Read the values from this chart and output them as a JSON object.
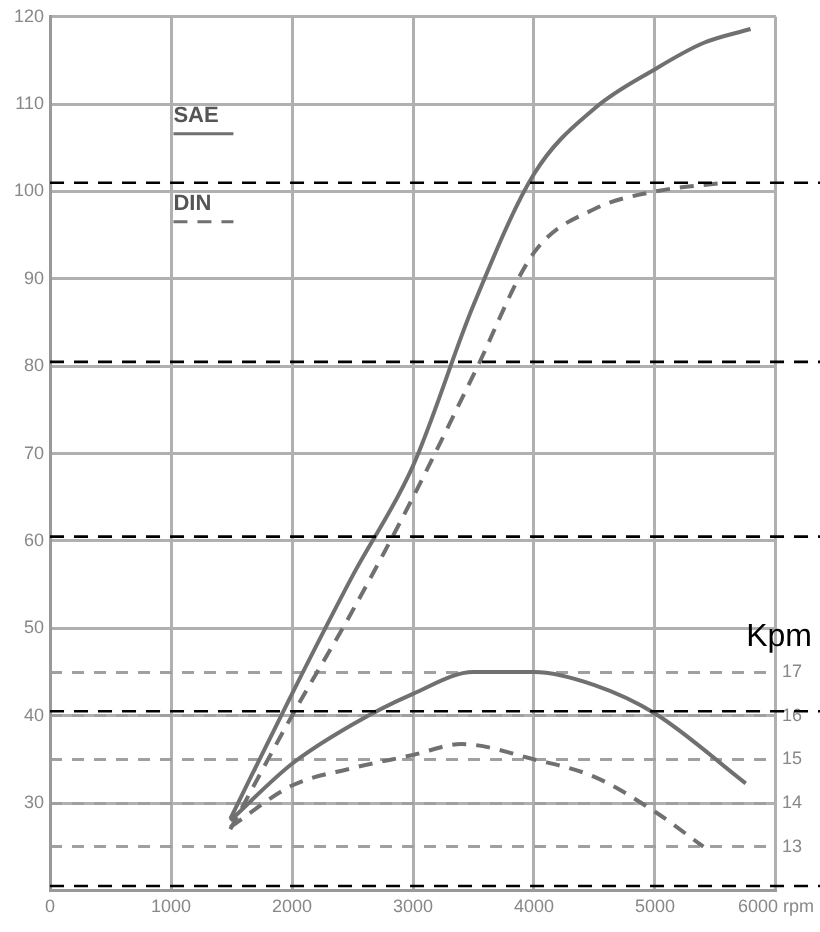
{
  "chart_data": {
    "type": "line",
    "xlim": [
      0,
      6000
    ],
    "xticks": [
      0,
      1000,
      2000,
      3000,
      4000,
      5000,
      {
        "value": 6000,
        "label": "6000 rpm"
      }
    ],
    "ylim": [
      20,
      120
    ],
    "yticks": [
      {
        "value": 20,
        "label": null
      },
      30,
      40,
      50,
      60,
      70,
      80,
      90,
      100,
      110,
      120
    ],
    "y2lim": [
      12,
      32
    ],
    "y2ticks": [
      13,
      14,
      15,
      16,
      17
    ],
    "y2label": "Kpm",
    "grid": true,
    "legend": "top left",
    "marker": "none",
    "series": [
      {
        "name": "SAE",
        "color": "#707070",
        "line_style": "solid",
        "x": [
          1490,
          2000,
          2500,
          3000,
          3500,
          4000,
          4500,
          5000,
          5400,
          5790
        ],
        "values": [
          28.2,
          42.5,
          56,
          68.6,
          87,
          102,
          109.5,
          114,
          117,
          118.6
        ]
      },
      {
        "name": "DIN",
        "color": "#707070",
        "line_style": "dashed",
        "x": [
          1490,
          2000,
          2500,
          3000,
          3500,
          4000,
          4500,
          5000,
          5560
        ],
        "values": [
          27,
          40,
          52,
          65,
          79,
          93,
          98,
          100,
          101
        ]
      },
      {
        "color": "#707070",
        "line_style": "solid",
        "axis": "y2",
        "x": [
          1490,
          2000,
          2500,
          3000,
          3500,
          4000,
          4500,
          5000,
          5750
        ],
        "values": [
          13.6,
          14.9,
          15.8,
          16.5,
          17,
          17,
          16.7,
          16.05,
          14.45
        ]
      },
      {
        "color": "#707070",
        "line_style": "dashed",
        "axis": "y2",
        "x": [
          1490,
          2000,
          2500,
          3000,
          3400,
          4000,
          4500,
          5000,
          5400
        ],
        "values": [
          13.45,
          14.4,
          14.8,
          15.1,
          15.35,
          15,
          14.6,
          13.8,
          13
        ]
      }
    ],
    "ref_lines": [
      {
        "axis": "y",
        "value": 101,
        "color": "#000000",
        "line_style": "dashed"
      },
      {
        "axis": "y",
        "value": 80.5,
        "color": "#000000",
        "line_style": "dashed"
      },
      {
        "axis": "y",
        "value": 60.5,
        "color": "#000000",
        "line_style": "dashed"
      },
      {
        "axis": "y",
        "value": 40.5,
        "color": "#000000",
        "line_style": "dashed"
      },
      {
        "axis": "y",
        "value": 20.5,
        "color": "#000000",
        "line_style": "dashed"
      }
    ]
  }
}
